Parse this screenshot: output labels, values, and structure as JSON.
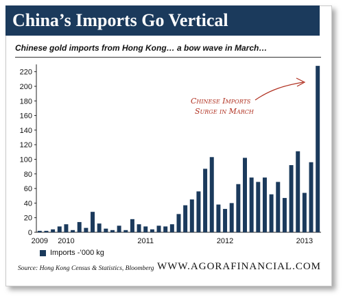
{
  "header": {
    "title": "China’s Imports Go Vertical",
    "subtitle": "Chinese gold imports from Hong Kong… a bow wave in March…"
  },
  "annotation": {
    "line1": "Chinese Imports",
    "line2": "Surge in March"
  },
  "legend_label": "Imports -’000 kg",
  "source": "Source: Hong Kong Census & Statistics, Bloomberg",
  "website": "WWW.AGORAFINANCIAL.COM",
  "colors": {
    "bar": "#1b3a5c",
    "banner": "#1b3a5c",
    "annotation": "#b03020"
  },
  "chart_data": {
    "type": "bar",
    "xlabel": "",
    "ylabel": "",
    "ylim": [
      0,
      230
    ],
    "yticks": [
      0,
      20,
      40,
      60,
      80,
      100,
      120,
      140,
      160,
      180,
      200,
      220
    ],
    "grid": false,
    "legend": "bottom-left",
    "x_tick_labels": [
      {
        "label": "2009",
        "index": 0
      },
      {
        "label": "2010",
        "index": 4
      },
      {
        "label": "2011",
        "index": 16
      },
      {
        "label": "2012",
        "index": 28
      },
      {
        "label": "2013",
        "index": 40
      }
    ],
    "series": [
      {
        "name": "Imports -’000 kg",
        "values": [
          2,
          2,
          4,
          8,
          11,
          3,
          14,
          6,
          28,
          12,
          5,
          3,
          9,
          3,
          18,
          11,
          8,
          4,
          9,
          8,
          11,
          25,
          37,
          45,
          56,
          87,
          103,
          38,
          32,
          40,
          66,
          102,
          75,
          69,
          75,
          52,
          69,
          47,
          92,
          111,
          54,
          96,
          228
        ]
      }
    ]
  }
}
